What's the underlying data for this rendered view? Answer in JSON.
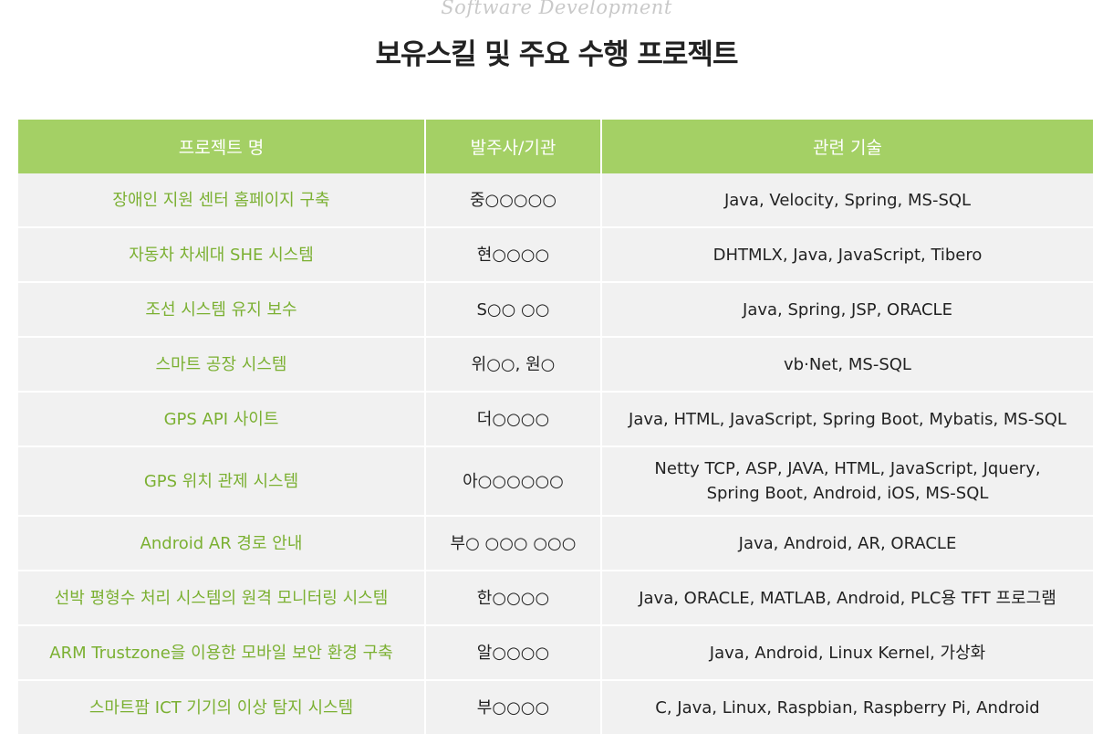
{
  "header": {
    "subtitle": "Software Development",
    "title": "보유스킬 및 주요 수행 프로젝트"
  },
  "table": {
    "columns": [
      "프로젝트 명",
      "발주사/기관",
      "관련 기술"
    ],
    "rows": [
      {
        "name": "장애인 지원 센터 홈페이지 구축",
        "client": "중○○○○○",
        "tech": "Java, Velocity, Spring, MS-SQL"
      },
      {
        "name": "자동차 차세대 SHE 시스템",
        "client": "현○○○○",
        "tech": "DHTMLX, Java, JavaScript, Tibero"
      },
      {
        "name": "조선 시스템 유지 보수",
        "client": "S○○ ○○",
        "tech": "Java, Spring, JSP, ORACLE"
      },
      {
        "name": "스마트 공장 시스템",
        "client": "위○○, 원○",
        "tech": "vb·Net, MS-SQL"
      },
      {
        "name": "GPS API 사이트",
        "client": "더○○○○",
        "tech": "Java, HTML, JavaScript, Spring Boot, Mybatis, MS-SQL"
      },
      {
        "name": "GPS 위치 관제 시스템",
        "client": "아○○○○○○",
        "tech": "Netty TCP, ASP, JAVA, HTML, JavaScript, Jquery,",
        "tech2": "Spring Boot, Android, iOS, MS-SQL"
      },
      {
        "name": "Android AR 경로 안내",
        "client": "부○ ○○○ ○○○",
        "tech": "Java, Android, AR, ORACLE"
      },
      {
        "name": "선박 평형수 처리 시스템의 원격 모니터링 시스템",
        "client": "한○○○○",
        "tech": "Java, ORACLE, MATLAB, Android, PLC용 TFT 프로그램"
      },
      {
        "name": "ARM Trustzone을 이용한 모바일 보안 환경 구축",
        "client": "알○○○○",
        "tech": "Java, Android, Linux Kernel, 가상화"
      },
      {
        "name": "스마트팜 ICT 기기의 이상 탐지 시스템",
        "client": "부○○○○",
        "tech": "C, Java, Linux, Raspbian, Raspberry Pi, Android"
      }
    ]
  },
  "colors": {
    "header_bg": "#a4d065",
    "name_text": "#7bb032",
    "row_bg": "#f1f1f1"
  }
}
